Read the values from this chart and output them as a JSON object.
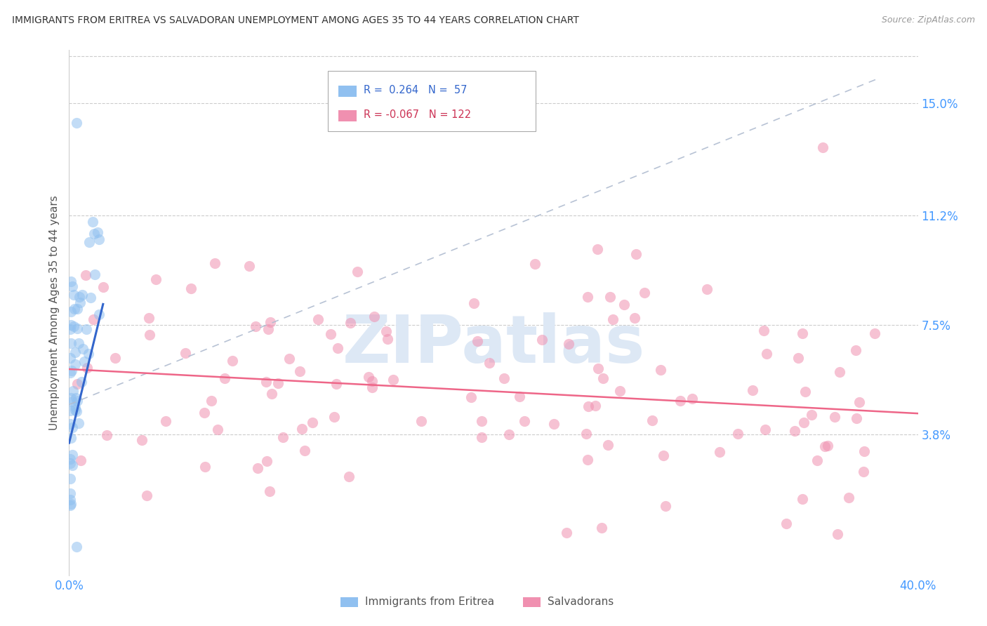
{
  "title": "IMMIGRANTS FROM ERITREA VS SALVADORAN UNEMPLOYMENT AMONG AGES 35 TO 44 YEARS CORRELATION CHART",
  "source": "Source: ZipAtlas.com",
  "ylabel": "Unemployment Among Ages 35 to 44 years",
  "ytick_labels": [
    "15.0%",
    "11.2%",
    "7.5%",
    "3.8%"
  ],
  "ytick_values": [
    0.15,
    0.112,
    0.075,
    0.038
  ],
  "xmin": 0.0,
  "xmax": 0.4,
  "ymin": -0.01,
  "ymax": 0.168,
  "eritrea_color": "#90c0f0",
  "salvadoran_color": "#f090b0",
  "eritrea_line_color": "#3366cc",
  "salvadoran_line_color": "#ee6688",
  "dashed_line_color": "#b0bcd0",
  "legend_eritrea_R": "0.264",
  "legend_eritrea_N": "57",
  "legend_salvadoran_R": "-0.067",
  "legend_salvadoran_N": "122",
  "watermark_text": "ZIPatlas",
  "bottom_legend_eritrea": "Immigrants from Eritrea",
  "bottom_legend_salvadoran": "Salvadorans"
}
